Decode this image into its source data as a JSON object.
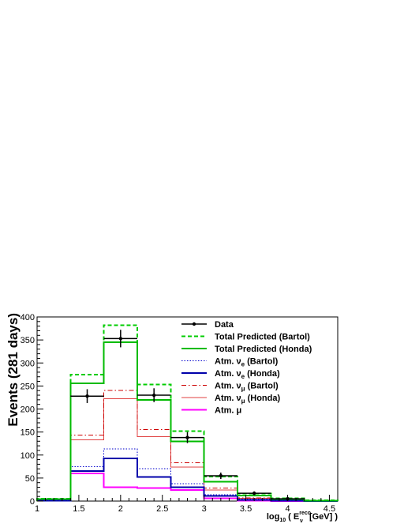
{
  "chart_data": {
    "type": "histogram",
    "xlabel": {
      "prefix": "log",
      "prefix_sub": "10",
      "open": " ( E",
      "sup": "reco",
      "sub": "ν",
      "close": "[GeV] )"
    },
    "ylabel": "Events (281 days)",
    "xlim": [
      1,
      4.6
    ],
    "ylim": [
      0,
      400
    ],
    "x_ticks": [
      "1",
      "1.5",
      "2",
      "2.5",
      "3",
      "3.5",
      "4",
      "4.5"
    ],
    "y_ticks": [
      "0",
      "50",
      "100",
      "150",
      "200",
      "250",
      "300",
      "350",
      "400"
    ],
    "bin_edges": [
      1.0,
      1.4,
      1.8,
      2.2,
      2.6,
      3.0,
      3.4,
      3.8,
      4.2,
      4.6
    ],
    "data": {
      "name": "Data",
      "x": [
        1.6,
        2.0,
        2.4,
        2.8,
        3.2,
        3.6,
        4.0
      ],
      "y": [
        228,
        353,
        230,
        138,
        55,
        17,
        5
      ],
      "yerr": [
        15,
        19,
        15,
        12,
        7,
        4,
        2
      ]
    },
    "series": [
      {
        "name": "Total Predicted (Bartol)",
        "color": "#00cc00",
        "style": "dashed",
        "width": 2,
        "values": [
          5,
          275,
          382,
          253,
          152,
          53,
          16,
          6,
          2
        ]
      },
      {
        "name": "Total Predicted (Honda)",
        "color": "#00bb00",
        "style": "solid",
        "width": 2,
        "values": [
          4,
          256,
          345,
          220,
          130,
          42,
          12,
          4,
          1
        ]
      },
      {
        "name": "Atm. νe (Bartol)",
        "color": "#0000cc",
        "style": "dotted",
        "width": 1,
        "values": [
          1,
          75,
          113,
          70,
          38,
          14,
          4,
          1,
          0
        ]
      },
      {
        "name": "Atm. νe (Honda)",
        "color": "#0000aa",
        "style": "solid",
        "width": 2,
        "values": [
          1,
          65,
          93,
          52,
          30,
          11,
          3,
          1,
          0
        ]
      },
      {
        "name": "Atm. νμ (Bartol)",
        "color": "#cc0000",
        "style": "dashdot",
        "width": 1,
        "values": [
          2,
          143,
          240,
          155,
          83,
          28,
          7,
          2,
          1
        ]
      },
      {
        "name": "Atm. νμ (Honda)",
        "color": "#e04040",
        "style": "solid",
        "width": 1,
        "values": [
          2,
          133,
          222,
          140,
          74,
          24,
          6,
          2,
          1
        ]
      },
      {
        "name": "Atm. μ",
        "color": "#ff00ff",
        "style": "solid",
        "width": 2,
        "values": [
          2,
          60,
          30,
          28,
          24,
          6,
          1,
          0,
          0
        ]
      }
    ],
    "legend": [
      {
        "label": "Data",
        "base": "Data",
        "sub": "",
        "tail": ""
      },
      {
        "label": "Total Predicted (Bartol)",
        "base": "Total Predicted (Bartol)",
        "sub": "",
        "tail": ""
      },
      {
        "label": "Total Predicted (Honda)",
        "base": "Total Predicted (Honda)",
        "sub": "",
        "tail": ""
      },
      {
        "label": "Atm. νe (Bartol)",
        "base": "Atm. ν",
        "sub": "e",
        "tail": " (Bartol)"
      },
      {
        "label": "Atm. νe (Honda)",
        "base": "Atm. ν",
        "sub": "e",
        "tail": " (Honda)"
      },
      {
        "label": "Atm. νμ (Bartol)",
        "base": "Atm. ν",
        "sub": "μ",
        "tail": " (Bartol)"
      },
      {
        "label": "Atm. νμ (Honda)",
        "base": "Atm. ν",
        "sub": "μ",
        "tail": " (Honda)"
      },
      {
        "label": "Atm. μ",
        "base": "Atm. μ",
        "sub": "",
        "tail": ""
      }
    ],
    "legend_position": "top-right",
    "grid": false
  }
}
